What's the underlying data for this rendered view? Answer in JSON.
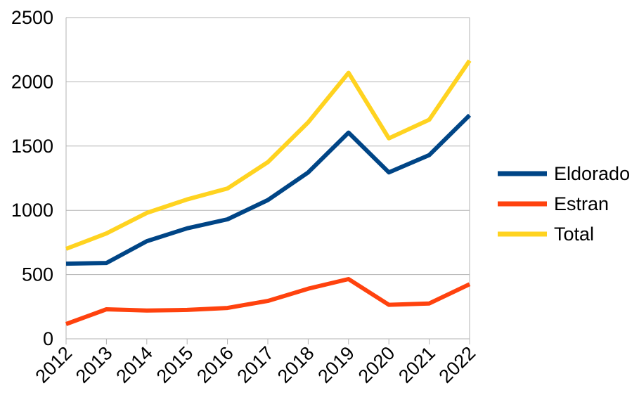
{
  "chart_data": {
    "type": "line",
    "title": "",
    "xlabel": "",
    "ylabel": "",
    "categories": [
      "2012",
      "2013",
      "2014",
      "2015",
      "2016",
      "2017",
      "2018",
      "2019",
      "2020",
      "2021",
      "2022"
    ],
    "ylim": [
      0,
      2500
    ],
    "yticks": [
      "0",
      "500",
      "1000",
      "1500",
      "2000",
      "2500"
    ],
    "grid": true,
    "legend_position": "right",
    "series": [
      {
        "name": "Eldorado",
        "color": "#004586",
        "values": [
          585,
          590,
          760,
          860,
          930,
          1080,
          1295,
          1605,
          1295,
          1430,
          1740
        ]
      },
      {
        "name": "Estran",
        "color": "#ff420e",
        "values": [
          115,
          230,
          220,
          225,
          240,
          295,
          390,
          465,
          265,
          275,
          425
        ]
      },
      {
        "name": "Total",
        "color": "#ffd320",
        "values": [
          700,
          820,
          980,
          1085,
          1170,
          1375,
          1685,
          2070,
          1560,
          1705,
          2165
        ]
      }
    ]
  }
}
